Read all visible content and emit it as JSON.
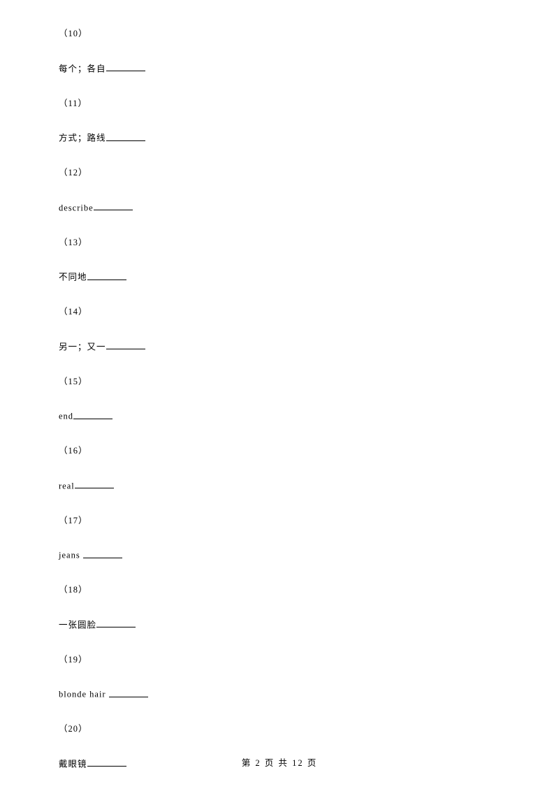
{
  "items": [
    {
      "num": "（10）",
      "text": "每个；各自",
      "blank": true
    },
    {
      "num": "（11）",
      "text": "方式；路线",
      "blank": true
    },
    {
      "num": "（12）",
      "text": "describe",
      "blank": true
    },
    {
      "num": "（13）",
      "text": "不同地",
      "blank": true
    },
    {
      "num": "（14）",
      "text": "另一；又一",
      "blank": true
    },
    {
      "num": "（15）",
      "text": "end",
      "blank": true
    },
    {
      "num": "（16）",
      "text": "real",
      "blank": true
    },
    {
      "num": "（17）",
      "text": "jeans ",
      "blank": true
    },
    {
      "num": "（18）",
      "text": "一张圆脸",
      "blank": true
    },
    {
      "num": "（19）",
      "text": "blonde hair ",
      "blank": true
    },
    {
      "num": "（20）",
      "text": "戴眼镜",
      "blank": true
    }
  ],
  "footer": {
    "prefix": "第 ",
    "current": "2",
    "middle": " 页 共 ",
    "total": "12",
    "suffix": " 页"
  }
}
